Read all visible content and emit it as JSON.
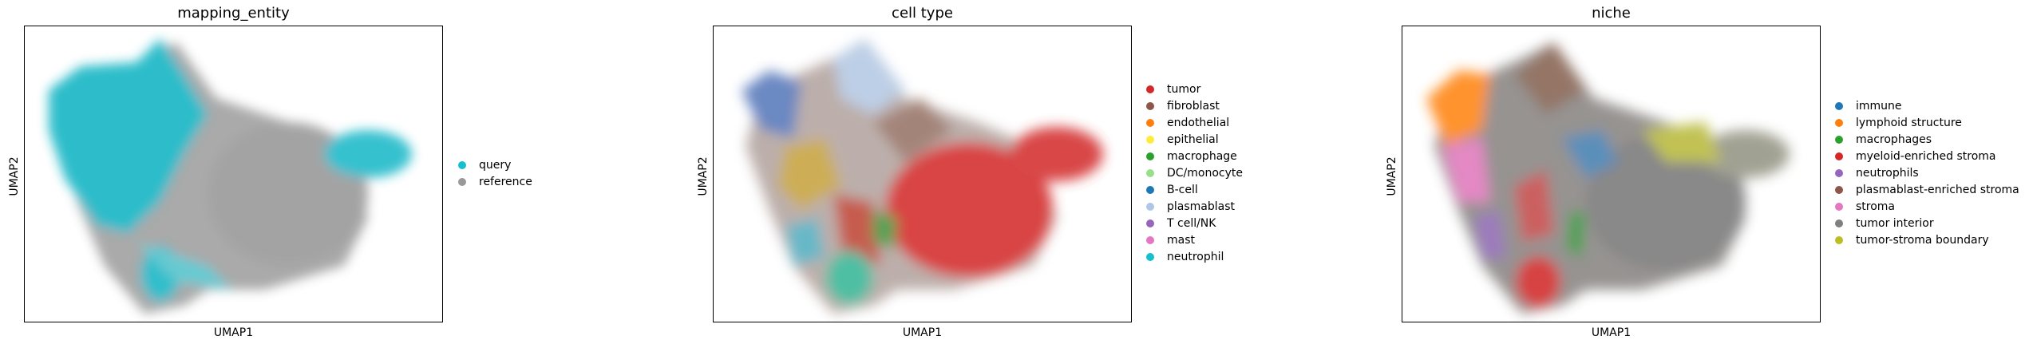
{
  "chart_data": [
    {
      "type": "scatter",
      "title": "mapping_entity",
      "xlabel": "UMAP1",
      "ylabel": "UMAP2",
      "legend_position": "right",
      "series": [
        {
          "name": "query",
          "color": "#17becf"
        },
        {
          "name": "reference",
          "color": "#999999"
        }
      ]
    },
    {
      "type": "scatter",
      "title": "cell type",
      "xlabel": "UMAP1",
      "ylabel": "UMAP2",
      "legend_position": "right",
      "series": [
        {
          "name": "tumor",
          "color": "#d62728"
        },
        {
          "name": "fibroblast",
          "color": "#8c564b"
        },
        {
          "name": "endothelial",
          "color": "#ff7f0e"
        },
        {
          "name": "epithelial",
          "color": "#ffeb3b"
        },
        {
          "name": "macrophage",
          "color": "#2ca02c"
        },
        {
          "name": "DC/monocyte",
          "color": "#98df8a"
        },
        {
          "name": "B-cell",
          "color": "#1f77b4"
        },
        {
          "name": "plasmablast",
          "color": "#aec7e8"
        },
        {
          "name": "T cell/NK",
          "color": "#9467bd"
        },
        {
          "name": "mast",
          "color": "#e377c2"
        },
        {
          "name": "neutrophil",
          "color": "#17becf"
        }
      ]
    },
    {
      "type": "scatter",
      "title": "niche",
      "xlabel": "UMAP1",
      "ylabel": "UMAP2",
      "legend_position": "right",
      "series": [
        {
          "name": "immune",
          "color": "#1f77b4"
        },
        {
          "name": "lymphoid structure",
          "color": "#ff7f0e"
        },
        {
          "name": "macrophages",
          "color": "#2ca02c"
        },
        {
          "name": "myeloid-enriched stroma",
          "color": "#d62728"
        },
        {
          "name": "neutrophils",
          "color": "#9467bd"
        },
        {
          "name": "plasmablast-enriched stroma",
          "color": "#8c564b"
        },
        {
          "name": "stroma",
          "color": "#e377c2"
        },
        {
          "name": "tumor interior",
          "color": "#7f7f7f"
        },
        {
          "name": "tumor-stroma boundary",
          "color": "#bcbd22"
        }
      ]
    }
  ]
}
